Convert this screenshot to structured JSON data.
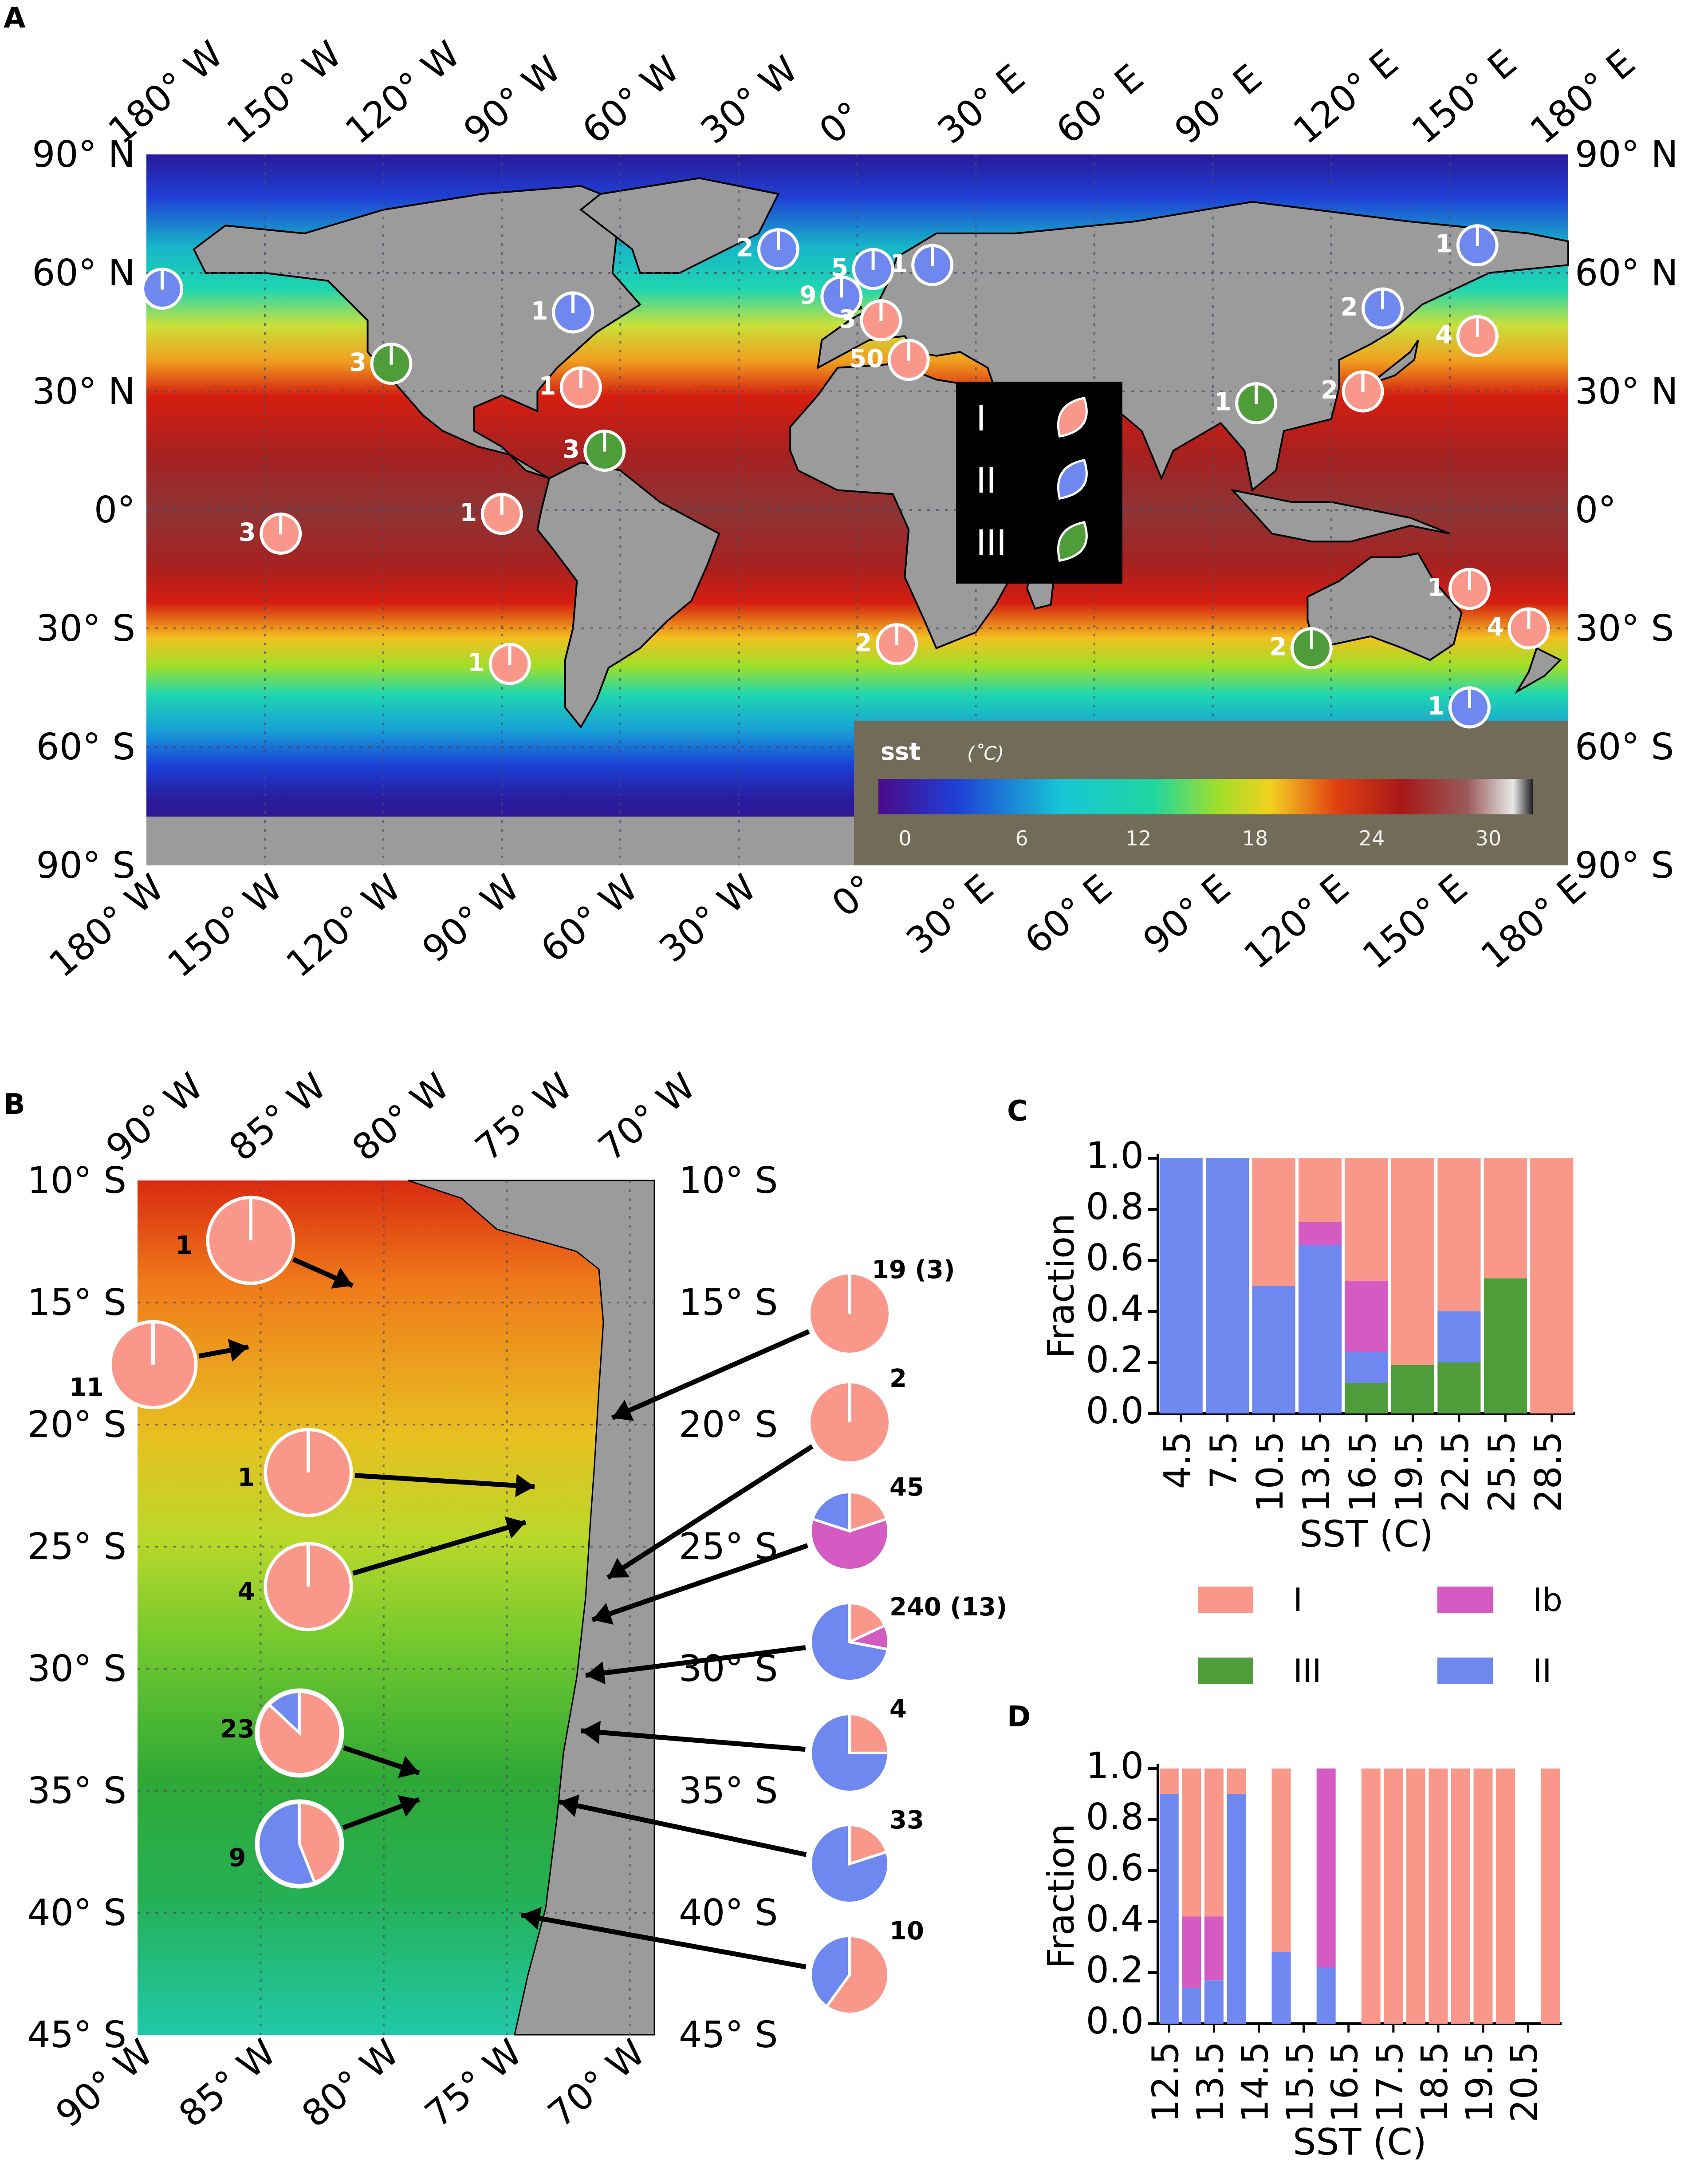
{
  "figure": {
    "panel_letters": [
      "A",
      "B",
      "C",
      "D"
    ]
  },
  "panel_a": {
    "x_ticks": [
      "180° W",
      "150° W",
      "120° W",
      "90° W",
      "60° W",
      "30° W",
      "0°",
      "30° E",
      "60° E",
      "90° E",
      "120° E",
      "150° E",
      "180° E"
    ],
    "y_ticks_left": [
      "90° N",
      "60° N",
      "30° N",
      "0°",
      "30° S",
      "60° S",
      "90° S"
    ],
    "y_ticks_right": [
      "90° N",
      "60° N",
      "30° N",
      "0°",
      "30° S",
      "60° S",
      "90° S"
    ],
    "legend": {
      "I": "I",
      "II": "II",
      "III": "III"
    },
    "sst_bar": {
      "title": "sst",
      "unit": "(˚C)",
      "ticks": [
        "0",
        "6",
        "12",
        "18",
        "24",
        "30"
      ]
    },
    "colors": {
      "I": "#f9988a",
      "II": "#6f88f0",
      "III": "#4f9c3a",
      "land": "#9b9b9b"
    },
    "sites": [
      {
        "label": "",
        "type": "II",
        "lon": -176,
        "lat": 56
      },
      {
        "label": "1",
        "type": "II",
        "lon": -72,
        "lat": 50
      },
      {
        "label": "3",
        "type": "III",
        "lon": -118,
        "lat": 37
      },
      {
        "label": "1",
        "type": "I",
        "lon": -70,
        "lat": 31
      },
      {
        "label": "3",
        "type": "III",
        "lon": -64,
        "lat": 15
      },
      {
        "label": "1",
        "type": "I",
        "lon": -90,
        "lat": -1
      },
      {
        "label": "3",
        "type": "I",
        "lon": -146,
        "lat": -6
      },
      {
        "label": "1",
        "type": "I",
        "lon": -88,
        "lat": -39
      },
      {
        "label": "2",
        "type": "II",
        "lon": -20,
        "lat": 66
      },
      {
        "label": "5",
        "type": "II",
        "lon": 4,
        "lat": 61
      },
      {
        "label": "1",
        "type": "II",
        "lon": 19,
        "lat": 62
      },
      {
        "label": "9",
        "type": "II",
        "lon": -4,
        "lat": 54
      },
      {
        "label": "3",
        "type": "I",
        "lon": 6,
        "lat": 48
      },
      {
        "label": "50",
        "type": "I",
        "lon": 13,
        "lat": 38
      },
      {
        "label": "2",
        "type": "I",
        "lon": 10,
        "lat": -34
      },
      {
        "label": "1",
        "type": "III",
        "lon": 101,
        "lat": 27
      },
      {
        "label": "2",
        "type": "II",
        "lon": 133,
        "lat": 51
      },
      {
        "label": "1",
        "type": "II",
        "lon": 157,
        "lat": 67
      },
      {
        "label": "4",
        "type": "I",
        "lon": 157,
        "lat": 44
      },
      {
        "label": "2",
        "type": "I",
        "lon": 128,
        "lat": 30
      },
      {
        "label": "2",
        "type": "III",
        "lon": 115,
        "lat": -35
      },
      {
        "label": "1",
        "type": "I",
        "lon": 155,
        "lat": -20
      },
      {
        "label": "4",
        "type": "I",
        "lon": 170,
        "lat": -30
      },
      {
        "label": "1",
        "type": "II",
        "lon": 155,
        "lat": -50
      }
    ]
  },
  "panel_b": {
    "x_ticks": [
      "90° W",
      "85° W",
      "80° W",
      "75° W",
      "70° W"
    ],
    "y_ticks": [
      "10° S",
      "15° S",
      "20° S",
      "25° S",
      "30° S",
      "35° S",
      "40° S",
      "45° S"
    ],
    "pies": [
      {
        "label": "1",
        "I": 1.0,
        "Ib": 0,
        "II": 0
      },
      {
        "label": "11",
        "I": 1.0,
        "Ib": 0,
        "II": 0
      },
      {
        "label": "1",
        "I": 1.0,
        "Ib": 0,
        "II": 0
      },
      {
        "label": "4",
        "I": 1.0,
        "Ib": 0,
        "II": 0
      },
      {
        "label": "23",
        "I": 0.87,
        "Ib": 0,
        "II": 0.13
      },
      {
        "label": "9",
        "I": 0.44,
        "Ib": 0,
        "II": 0.56
      },
      {
        "label": "19 (3)",
        "I": 1.0,
        "Ib": 0,
        "II": 0
      },
      {
        "label": "2",
        "I": 1.0,
        "Ib": 0,
        "II": 0
      },
      {
        "label": "45",
        "I": 0.2,
        "Ib": 0.6,
        "II": 0.2
      },
      {
        "label": "240 (13)",
        "I": 0.18,
        "Ib": 0.1,
        "II": 0.72
      },
      {
        "label": "4",
        "I": 0.25,
        "Ib": 0,
        "II": 0.75
      },
      {
        "label": "33",
        "I": 0.2,
        "Ib": 0,
        "II": 0.8
      },
      {
        "label": "10",
        "I": 0.6,
        "Ib": 0,
        "II": 0.4
      }
    ]
  },
  "chart_data": [
    {
      "type": "bar",
      "stacked": true,
      "panel": "C",
      "categories": [
        "4.5",
        "7.5",
        "10.5",
        "13.5",
        "16.5",
        "19.5",
        "22.5",
        "25.5",
        "28.5"
      ],
      "series": [
        {
          "name": "III",
          "values": [
            0,
            0,
            0,
            0,
            0.12,
            0.19,
            0.2,
            0.53,
            0
          ]
        },
        {
          "name": "II",
          "values": [
            1.0,
            1.0,
            0.5,
            0.66,
            0.12,
            0,
            0.2,
            0,
            0
          ]
        },
        {
          "name": "Ib",
          "values": [
            0,
            0,
            0,
            0.09,
            0.28,
            0,
            0,
            0,
            0
          ]
        },
        {
          "name": "I",
          "values": [
            0,
            0,
            0.5,
            0.25,
            0.48,
            0.81,
            0.6,
            0.47,
            1.0
          ]
        }
      ],
      "xlabel": "SST (C)",
      "ylabel": "Fraction",
      "ylim": [
        0,
        1.0
      ],
      "yticks": [
        "0.0",
        "0.2",
        "0.4",
        "0.6",
        "0.8",
        "1.0"
      ],
      "legend": [
        "I",
        "Ib",
        "III",
        "II"
      ]
    },
    {
      "type": "bar",
      "stacked": true,
      "panel": "D",
      "categories": [
        "12.5",
        "13.0",
        "13.5",
        "14.0",
        "14.5",
        "15.0",
        "15.5",
        "16.0",
        "16.5",
        "17.0",
        "17.5",
        "18.0",
        "18.5",
        "19.0",
        "19.5",
        "20.0",
        "20.5",
        "21.0"
      ],
      "tick_labels": [
        "12.5",
        "13.5",
        "14.5",
        "15.5",
        "16.5",
        "17.5",
        "18.5",
        "19.5",
        "20.5"
      ],
      "series": [
        {
          "name": "II",
          "values": [
            0.9,
            0.14,
            0.17,
            0.9,
            null,
            0.28,
            null,
            0.22,
            null,
            0,
            0,
            0,
            0,
            0,
            0,
            0,
            null,
            0
          ]
        },
        {
          "name": "Ib",
          "values": [
            0,
            0.28,
            0.25,
            0,
            null,
            0,
            null,
            0.78,
            null,
            0,
            0,
            0,
            0,
            0,
            0,
            0,
            null,
            0
          ]
        },
        {
          "name": "I",
          "values": [
            0.1,
            0.58,
            0.58,
            0.1,
            null,
            0.72,
            null,
            0,
            null,
            1,
            1,
            1,
            1,
            1,
            1,
            1,
            null,
            1
          ]
        }
      ],
      "xlabel": "SST (C)",
      "ylabel": "Fraction",
      "ylim": [
        0,
        1.0
      ],
      "yticks": [
        "0.0",
        "0.2",
        "0.4",
        "0.6",
        "0.8",
        "1.0"
      ]
    }
  ]
}
